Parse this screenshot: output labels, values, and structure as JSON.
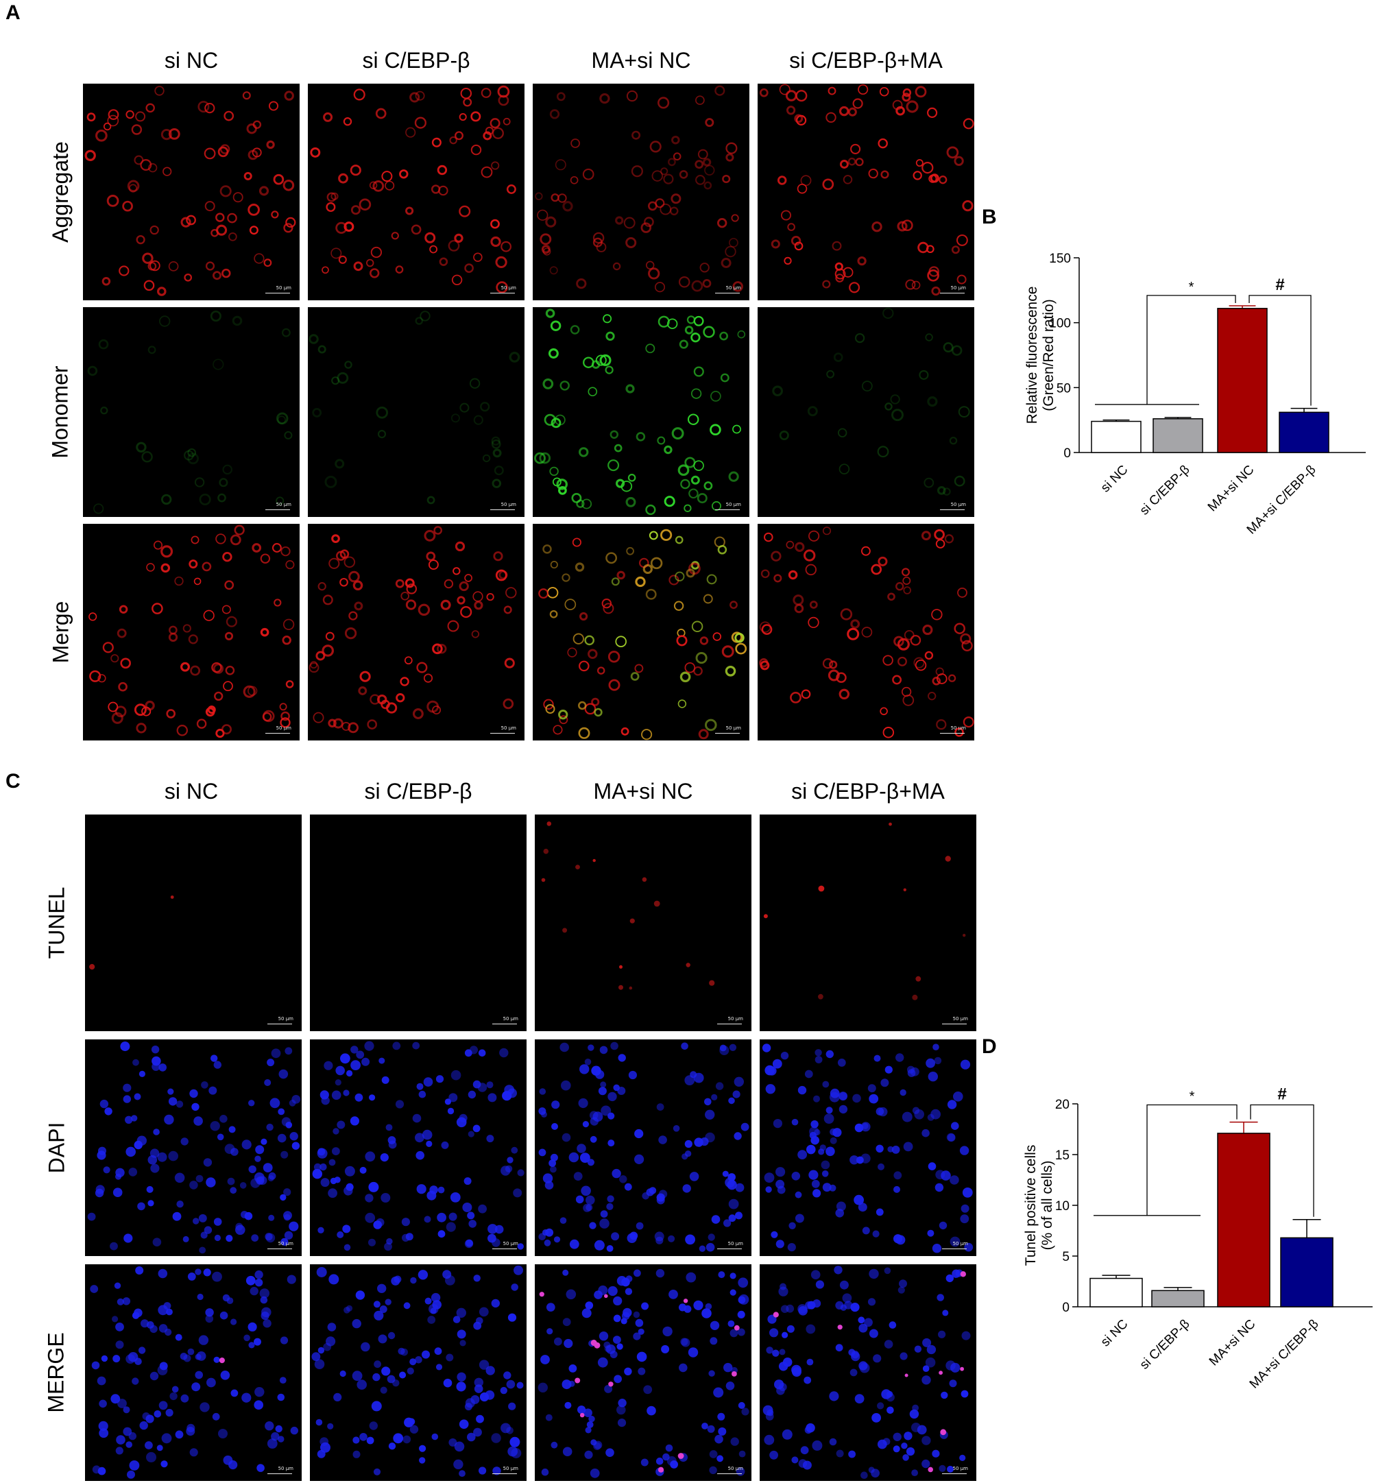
{
  "panels": {
    "a": "A",
    "b": "B",
    "c": "C",
    "d": "D"
  },
  "panel_a": {
    "columns": [
      "si NC",
      "si C/EBP-β",
      "MA+si NC",
      "si C/EBP-β+MA"
    ],
    "rows": [
      "Aggregate",
      "Monomer",
      "Merge"
    ]
  },
  "panel_c": {
    "columns": [
      "si NC",
      "si C/EBP-β",
      "MA+si NC",
      "si C/EBP-β+MA"
    ],
    "rows": [
      "TUNEL",
      "DAPI",
      "MERGE"
    ]
  },
  "scale_bar_label": "50 μm",
  "stain_colors": {
    "aggregate": "#e01818",
    "monomer": "#2fd62a",
    "tunel": "#e81c1c",
    "dapi": "#1c22f0",
    "background": "#000000"
  },
  "chart_data": [
    {
      "type": "bar",
      "panel": "B",
      "title": "",
      "categories": [
        "si NC",
        "si C/EBP-β",
        "MA+si NC",
        "MA+si C/EBP-β"
      ],
      "values": [
        24,
        26,
        111,
        31
      ],
      "errors": [
        1,
        1,
        2,
        3
      ],
      "colors": [
        "#ffffff",
        "#a5a5a8",
        "#a50000",
        "#000087"
      ],
      "ylabel": "Relative fluorescence",
      "ylabel2": "(Green/Red ratio)",
      "ylim": [
        0,
        150
      ],
      "yticks": [
        0,
        50,
        100,
        150
      ],
      "significance": [
        {
          "from": [
            0,
            1
          ],
          "to": 2,
          "symbol": "*"
        },
        {
          "from": [
            2
          ],
          "to": 3,
          "symbol": "#"
        }
      ]
    },
    {
      "type": "bar",
      "panel": "D",
      "title": "",
      "categories": [
        "si NC",
        "si C/EBP-β",
        "MA+si NC",
        "MA+si C/EBP-β"
      ],
      "values": [
        2.8,
        1.6,
        17.1,
        6.8
      ],
      "errors": [
        0.3,
        0.3,
        1.1,
        1.8
      ],
      "colors": [
        "#ffffff",
        "#a5a5a8",
        "#a50000",
        "#000087"
      ],
      "ylabel": "Tunel positive cells",
      "ylabel2": "(% of all cells)",
      "ylim": [
        0,
        20
      ],
      "yticks": [
        0,
        5,
        10,
        15,
        20
      ],
      "significance": [
        {
          "from": [
            0,
            1
          ],
          "to": 2,
          "symbol": "*"
        },
        {
          "from": [
            2
          ],
          "to": 3,
          "symbol": "#"
        }
      ]
    }
  ]
}
